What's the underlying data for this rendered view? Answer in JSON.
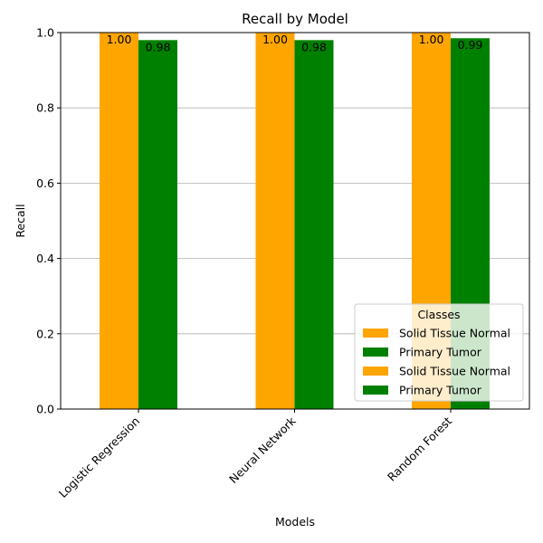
{
  "chart_data": {
    "type": "bar",
    "title": "Recall by Model",
    "xlabel": "Models",
    "ylabel": "Recall",
    "categories": [
      "Logistic Regression",
      "Neural Network",
      "Random Forest"
    ],
    "series": [
      {
        "name": "Solid Tissue Normal",
        "values": [
          1.0,
          1.0,
          1.0
        ],
        "labels": [
          "1.00",
          "1.00",
          "1.00"
        ],
        "color": "#FFA500"
      },
      {
        "name": "Primary Tumor",
        "values": [
          0.98,
          0.98,
          0.985
        ],
        "labels": [
          "0.98",
          "0.98",
          "0.99"
        ],
        "color": "#008000"
      }
    ],
    "ylim": [
      0,
      1.0
    ],
    "yticks": [
      "0.0",
      "0.2",
      "0.4",
      "0.6",
      "0.8",
      "1.0"
    ],
    "ytick_values": [
      0,
      0.2,
      0.4,
      0.6,
      0.8,
      1.0
    ],
    "grid": "horizontal",
    "legend": {
      "title": "Classes",
      "placement": "lower right",
      "entries": [
        {
          "label": "Solid Tissue Normal",
          "color": "#FFA500"
        },
        {
          "label": "Primary Tumor",
          "color": "#008000"
        },
        {
          "label": "Solid Tissue Normal",
          "color": "#FFA500"
        },
        {
          "label": "Primary Tumor",
          "color": "#008000"
        }
      ]
    }
  }
}
